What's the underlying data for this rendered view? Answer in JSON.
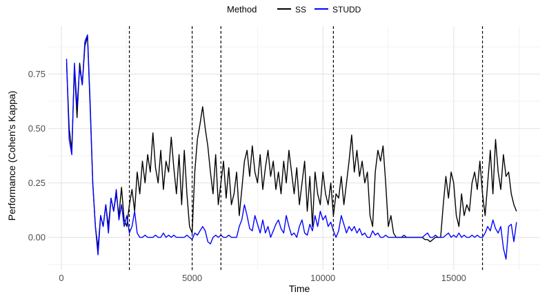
{
  "chart_data": {
    "type": "line",
    "title": "",
    "xlabel": "Time",
    "ylabel": "Performance (Cohen's Kappa)",
    "xlim": [
      -500,
      18300
    ],
    "ylim": [
      -0.15,
      0.97
    ],
    "x_ticks": [
      0,
      5000,
      10000,
      15000
    ],
    "x_tick_labels": [
      "0",
      "5000",
      "10000",
      "15000"
    ],
    "y_ticks": [
      0.0,
      0.25,
      0.5,
      0.75
    ],
    "y_tick_labels": [
      "0.00",
      "0.25",
      "0.50",
      "0.75"
    ],
    "grid": true,
    "legend": {
      "title": "Method",
      "placement": "top",
      "entries": [
        {
          "label": "SS",
          "color": "#000000"
        },
        {
          "label": "STUDD",
          "color": "#0000ff"
        }
      ]
    },
    "vlines": [
      2600,
      5000,
      6100,
      10400,
      16100
    ],
    "series": [
      {
        "name": "SS",
        "color": "#000000",
        "x": [
          200,
          300,
          400,
          500,
          600,
          700,
          800,
          900,
          1000,
          1100,
          1200,
          1300,
          1400,
          1500,
          1600,
          1700,
          1800,
          1900,
          2000,
          2100,
          2200,
          2300,
          2400,
          2500,
          2600,
          2700,
          2800,
          2900,
          3000,
          3100,
          3200,
          3300,
          3400,
          3500,
          3600,
          3700,
          3800,
          3900,
          4000,
          4100,
          4200,
          4300,
          4400,
          4500,
          4600,
          4700,
          4800,
          4900,
          5000,
          5100,
          5200,
          5300,
          5400,
          5500,
          5600,
          5700,
          5800,
          5900,
          6000,
          6100,
          6200,
          6300,
          6400,
          6500,
          6600,
          6700,
          6800,
          6900,
          7000,
          7100,
          7200,
          7300,
          7400,
          7500,
          7600,
          7700,
          7800,
          7900,
          8000,
          8100,
          8200,
          8300,
          8400,
          8500,
          8600,
          8700,
          8800,
          8900,
          9000,
          9100,
          9200,
          9300,
          9400,
          9500,
          9600,
          9700,
          9800,
          9900,
          10000,
          10100,
          10200,
          10300,
          10400,
          10500,
          10600,
          10700,
          10800,
          10900,
          11000,
          11100,
          11200,
          11300,
          11400,
          11500,
          11600,
          11700,
          11800,
          11900,
          12000,
          12100,
          12200,
          12300,
          12400,
          12500,
          12600,
          12700,
          12800,
          12900,
          13000,
          13100,
          13200,
          13300,
          13400,
          13500,
          13600,
          13700,
          13800,
          13900,
          14000,
          14100,
          14200,
          14300,
          14400,
          14500,
          14600,
          14700,
          14800,
          14900,
          15000,
          15100,
          15200,
          15300,
          15400,
          15500,
          15600,
          15700,
          15800,
          15900,
          16000,
          16100,
          16200,
          16300,
          16400,
          16500,
          16600,
          16700,
          16800,
          16900,
          17000,
          17100,
          17200,
          17300,
          17400
        ],
        "y": [
          0.8,
          0.5,
          0.4,
          0.78,
          0.55,
          0.8,
          0.7,
          0.88,
          0.92,
          0.6,
          0.25,
          0.05,
          -0.05,
          0.1,
          0.05,
          0.15,
          0.05,
          0.18,
          0.12,
          0.2,
          0.1,
          0.23,
          0.08,
          0.05,
          0.15,
          0.22,
          0.12,
          0.3,
          0.2,
          0.35,
          0.25,
          0.38,
          0.3,
          0.48,
          0.32,
          0.25,
          0.4,
          0.22,
          0.35,
          0.3,
          0.46,
          0.32,
          0.2,
          0.38,
          0.15,
          0.4,
          0.2,
          0.05,
          0.02,
          0.3,
          0.45,
          0.52,
          0.6,
          0.5,
          0.42,
          0.3,
          0.2,
          0.38,
          0.15,
          0.25,
          0.35,
          0.18,
          0.32,
          0.15,
          0.2,
          0.3,
          0.1,
          0.22,
          0.35,
          0.4,
          0.28,
          0.42,
          0.3,
          0.25,
          0.38,
          0.22,
          0.32,
          0.4,
          0.28,
          0.35,
          0.22,
          0.3,
          0.2,
          0.35,
          0.25,
          0.4,
          0.3,
          0.2,
          0.32,
          0.15,
          0.25,
          0.35,
          0.12,
          0.28,
          0.05,
          0.3,
          0.2,
          0.15,
          0.3,
          0.2,
          0.15,
          0.25,
          0.1,
          0.2,
          0.18,
          0.28,
          0.15,
          0.25,
          0.35,
          0.47,
          0.3,
          0.4,
          0.28,
          0.35,
          0.25,
          0.3,
          0.1,
          0.05,
          0.3,
          0.4,
          0.35,
          0.42,
          0.25,
          0.05,
          0.1,
          0.02,
          0.0,
          0.0,
          0.0,
          0.0,
          0.0,
          0.0,
          0.0,
          0.0,
          0.0,
          0.0,
          0.0,
          -0.01,
          -0.01,
          -0.02,
          -0.01,
          0.0,
          0.0,
          0.0,
          0.15,
          0.28,
          0.18,
          0.3,
          0.25,
          0.1,
          0.05,
          0.2,
          0.1,
          0.15,
          0.12,
          0.25,
          0.3,
          0.22,
          0.35,
          0.2,
          0.1,
          0.25,
          0.4,
          0.2,
          0.45,
          0.3,
          0.22,
          0.38,
          0.28,
          0.3,
          0.2,
          0.15,
          0.12
        ]
      },
      {
        "name": "STUDD",
        "color": "#0000ff",
        "x": [
          200,
          300,
          400,
          500,
          600,
          700,
          800,
          900,
          1000,
          1100,
          1200,
          1300,
          1400,
          1500,
          1600,
          1700,
          1800,
          1900,
          2000,
          2100,
          2200,
          2300,
          2400,
          2500,
          2600,
          2700,
          2800,
          2900,
          3000,
          3100,
          3200,
          3300,
          3400,
          3500,
          3600,
          3700,
          3800,
          3900,
          4000,
          4100,
          4200,
          4300,
          4400,
          4500,
          4600,
          4700,
          4800,
          4900,
          5000,
          5100,
          5200,
          5300,
          5400,
          5500,
          5600,
          5700,
          5800,
          5900,
          6000,
          6100,
          6200,
          6300,
          6400,
          6500,
          6600,
          6700,
          6800,
          6900,
          7000,
          7100,
          7200,
          7300,
          7400,
          7500,
          7600,
          7700,
          7800,
          7900,
          8000,
          8100,
          8200,
          8300,
          8400,
          8500,
          8600,
          8700,
          8800,
          8900,
          9000,
          9100,
          9200,
          9300,
          9400,
          9500,
          9600,
          9700,
          9800,
          9900,
          10000,
          10100,
          10200,
          10300,
          10400,
          10500,
          10600,
          10700,
          10800,
          10900,
          11000,
          11100,
          11200,
          11300,
          11400,
          11500,
          11600,
          11700,
          11800,
          11900,
          12000,
          12100,
          12200,
          12300,
          12400,
          12500,
          12600,
          12700,
          12800,
          12900,
          13000,
          13100,
          13200,
          13300,
          13400,
          13500,
          13600,
          13700,
          13800,
          13900,
          14000,
          14100,
          14200,
          14300,
          14400,
          14500,
          14600,
          14700,
          14800,
          14900,
          15000,
          15100,
          15200,
          15300,
          15400,
          15500,
          15600,
          15700,
          15800,
          15900,
          16000,
          16100,
          16200,
          16300,
          16400,
          16500,
          16600,
          16700,
          16800,
          16900,
          17000,
          17100,
          17200,
          17300,
          17400
        ],
        "y": [
          0.82,
          0.45,
          0.38,
          0.8,
          0.6,
          0.78,
          0.7,
          0.9,
          0.93,
          0.62,
          0.25,
          0.05,
          -0.08,
          0.1,
          0.05,
          0.15,
          0.02,
          0.18,
          0.12,
          0.22,
          0.08,
          0.15,
          0.05,
          0.1,
          0.02,
          0.05,
          0.12,
          0.02,
          0.0,
          0.0,
          0.01,
          0.0,
          0.0,
          0.0,
          0.01,
          0.0,
          0.0,
          0.02,
          0.0,
          0.01,
          0.0,
          0.01,
          0.0,
          0.0,
          0.0,
          0.0,
          0.01,
          0.0,
          -0.01,
          0.02,
          0.01,
          0.03,
          0.05,
          0.03,
          -0.02,
          -0.03,
          0.0,
          0.01,
          0.0,
          0.01,
          0.0,
          0.0,
          0.01,
          0.0,
          0.0,
          0.0,
          0.05,
          0.08,
          0.15,
          0.1,
          0.04,
          0.03,
          0.1,
          0.06,
          0.02,
          0.08,
          0.02,
          0.05,
          0.0,
          0.03,
          0.06,
          0.08,
          0.04,
          0.02,
          0.1,
          0.05,
          0.01,
          0.02,
          0.0,
          0.05,
          0.08,
          0.02,
          0.01,
          0.06,
          0.03,
          0.1,
          0.05,
          0.12,
          0.08,
          0.1,
          0.05,
          0.07,
          0.03,
          0.0,
          0.03,
          0.1,
          0.06,
          0.02,
          0.05,
          0.03,
          0.05,
          0.02,
          0.04,
          0.01,
          0.02,
          0.0,
          0.0,
          0.03,
          0.01,
          0.02,
          0.0,
          0.0,
          0.01,
          0.0,
          0.0,
          0.0,
          0.0,
          0.0,
          0.0,
          0.01,
          0.0,
          0.0,
          0.0,
          0.0,
          0.0,
          0.0,
          0.0,
          0.01,
          0.02,
          0.0,
          0.0,
          0.01,
          0.0,
          0.0,
          0.0,
          0.01,
          0.02,
          0.0,
          0.01,
          0.0,
          0.02,
          0.0,
          0.01,
          0.0,
          0.0,
          0.01,
          0.0,
          0.01,
          0.0,
          0.0,
          0.02,
          0.05,
          0.03,
          0.08,
          0.04,
          0.02,
          0.05,
          -0.05,
          -0.1,
          0.05,
          0.06,
          -0.02,
          0.07
        ]
      }
    ]
  }
}
